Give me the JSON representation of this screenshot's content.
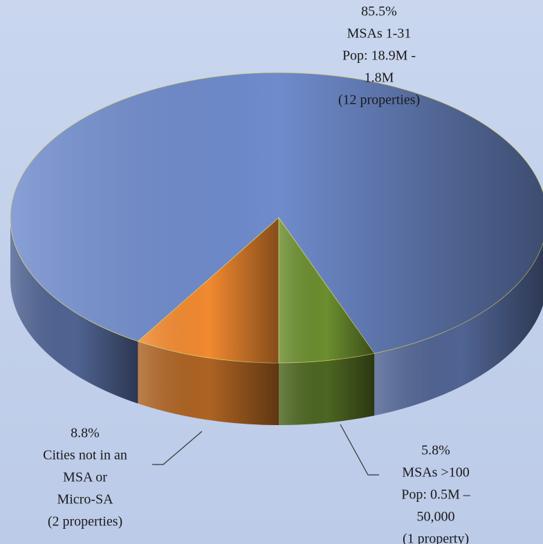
{
  "chart_data": {
    "type": "pie",
    "categories": [
      [
        "MSAs 1-31",
        "Pop: 18.9M -",
        "1.8M",
        "(12 properties)"
      ],
      [
        "Cities not in an",
        "MSA or",
        "Micro-SA",
        "(2 properties)"
      ],
      [
        "MSAs  >100",
        "Pop: 0.5M –",
        "50,000",
        "(1 property)"
      ]
    ],
    "values": [
      85.5,
      8.8,
      5.8
    ],
    "value_labels": [
      "85.5%",
      "8.8%",
      "5.8%"
    ],
    "colors": [
      "#6f8bcc",
      "#f28a30",
      "#6b8e2e"
    ]
  }
}
